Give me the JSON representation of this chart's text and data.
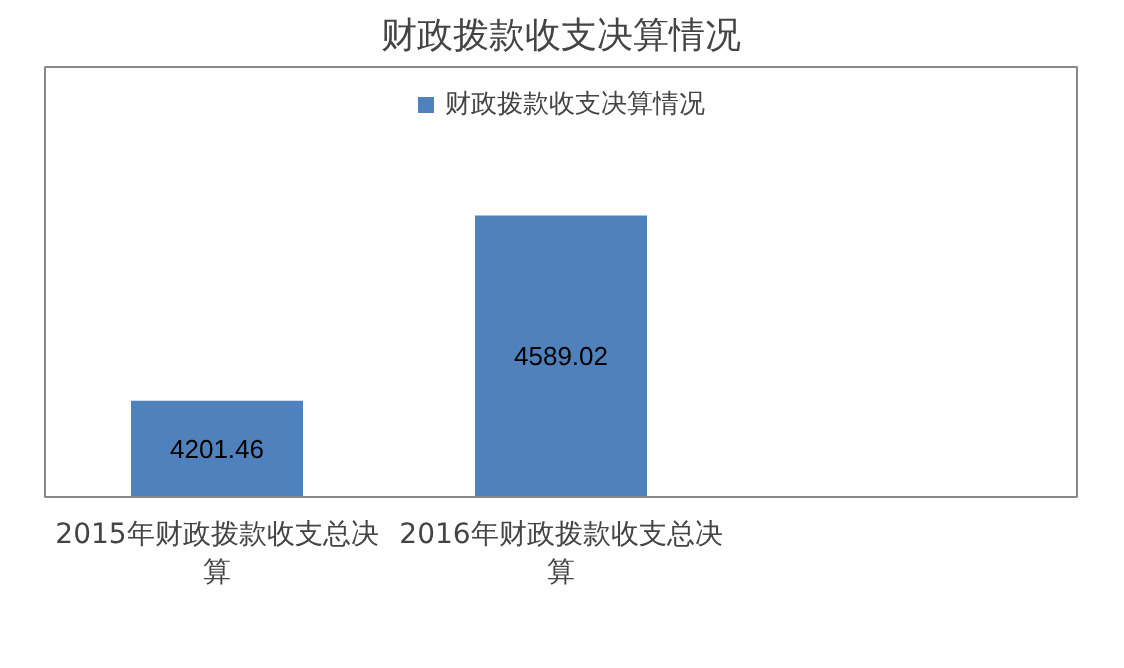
{
  "chart_data": {
    "type": "bar",
    "title": "财政拨款收支决算情况",
    "categories": [
      "2015年财政拨款收支总决算",
      "2016年财政拨款收支总决算",
      null
    ],
    "series": [
      {
        "name": "财政拨款收支决算情况",
        "color": "#4f81bd",
        "values": [
          4201.46,
          4589.02,
          null
        ]
      }
    ],
    "ylim": [
      4000,
      4900
    ],
    "tick_labels": "x",
    "data_labels": true,
    "legend": "top",
    "grid": false
  }
}
